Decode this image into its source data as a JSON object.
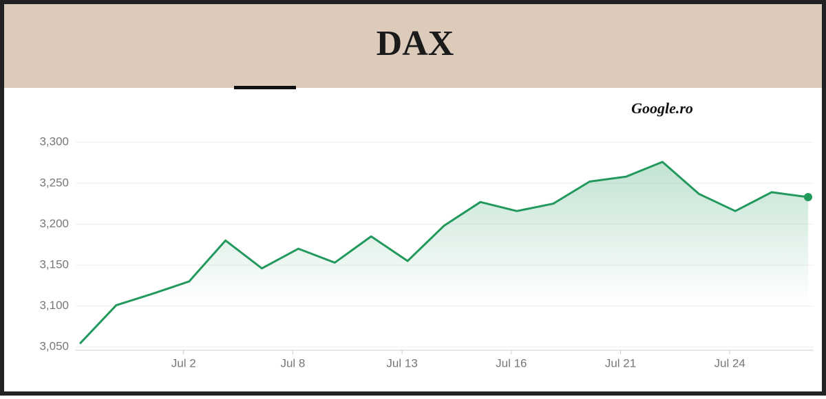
{
  "chart_data": {
    "type": "line",
    "title": "DAX",
    "annotation": "Google.ro",
    "categories": [
      null,
      null,
      null,
      "Jul 2",
      null,
      null,
      "Jul 8",
      null,
      null,
      "Jul 13",
      null,
      null,
      "Jul 16",
      null,
      null,
      "Jul 21",
      null,
      null,
      "Jul 24",
      null,
      null
    ],
    "values": [
      3054,
      3101,
      3115,
      3130,
      3180,
      3146,
      3170,
      3153,
      3185,
      3155,
      3198,
      3227,
      3216,
      3225,
      3252,
      3258,
      3276,
      3237,
      3216,
      3239,
      3233
    ],
    "color": "#22995c",
    "ylim": [
      3046,
      3306
    ],
    "yticks": [
      {
        "value": 3050,
        "label": "3,050"
      },
      {
        "value": 3100,
        "label": "3,100"
      },
      {
        "value": 3150,
        "label": "3,150"
      },
      {
        "value": 3200,
        "label": "3,200"
      },
      {
        "value": 3250,
        "label": "3,250"
      },
      {
        "value": 3300,
        "label": "3,300"
      }
    ],
    "grid": true
  }
}
